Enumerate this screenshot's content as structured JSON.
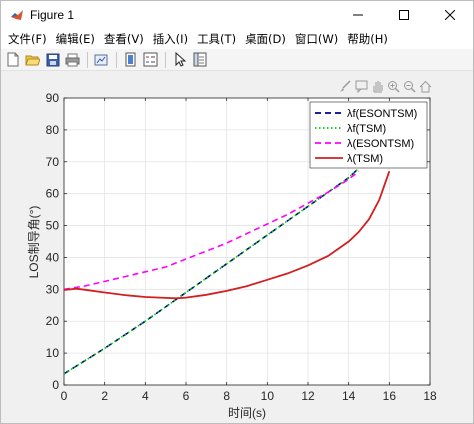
{
  "window": {
    "title": "Figure 1"
  },
  "menu": [
    "文件(F)",
    "编辑(E)",
    "查看(V)",
    "插入(I)",
    "工具(T)",
    "桌面(D)",
    "窗口(W)",
    "帮助(H)"
  ],
  "toolbar": {
    "icons": [
      "new-figure-icon",
      "open-file-icon",
      "save-icon",
      "print-icon",
      "link-plot-icon",
      "insert-colorbar-icon",
      "insert-legend-icon",
      "edit-plot-icon",
      "property-inspector-icon"
    ]
  },
  "axes_toolbar": {
    "icons": [
      "brush-icon",
      "datatip-icon",
      "pan-icon",
      "zoom-in-icon",
      "zoom-out-icon",
      "home-icon"
    ]
  },
  "chart_data": {
    "type": "line",
    "xlabel": "时间(s)",
    "ylabel": "LOS制导角(°)",
    "xlim": [
      0,
      18
    ],
    "ylim": [
      0,
      90
    ],
    "xticks": [
      0,
      2,
      4,
      6,
      8,
      10,
      12,
      14,
      16,
      18
    ],
    "yticks": [
      0,
      10,
      20,
      30,
      40,
      50,
      60,
      70,
      80,
      90
    ],
    "grid": true,
    "legend_position": "top-right",
    "series": [
      {
        "name": "λf(ESONTSM)",
        "color": "#00008b",
        "dash": "dashed",
        "x": [
          0,
          2,
          4,
          6,
          8,
          10,
          12,
          14,
          14.5
        ],
        "y": [
          3.5,
          11.5,
          20,
          29,
          38,
          47,
          56,
          65,
          68
        ]
      },
      {
        "name": "λf(TSM)",
        "color": "#00cc00",
        "dash": "dotted",
        "x": [
          0,
          2,
          4,
          6,
          8,
          10,
          12,
          14,
          14.5
        ],
        "y": [
          3.5,
          11.5,
          20,
          29,
          38,
          47,
          56,
          65,
          68
        ]
      },
      {
        "name": "λ(ESONTSM)",
        "color": "#ff00ff",
        "dash": "dashed",
        "x": [
          0,
          1,
          2,
          3,
          4,
          5,
          6,
          7,
          8,
          9,
          10,
          11,
          12,
          13,
          14,
          14.5
        ],
        "y": [
          30,
          31,
          32.5,
          34,
          35.5,
          37,
          39.5,
          42,
          44.5,
          47.5,
          50.5,
          53.5,
          57,
          60.5,
          64.5,
          67
        ]
      },
      {
        "name": "λ(TSM)",
        "color": "#d21f1f",
        "dash": "solid",
        "x": [
          0,
          0.6,
          1,
          2,
          3,
          4,
          5,
          5.5,
          6,
          7,
          8,
          9,
          10,
          11,
          12,
          13,
          14,
          14.5,
          15,
          15.5,
          16
        ],
        "y": [
          29.8,
          30.2,
          29.9,
          29,
          28.2,
          27.6,
          27.3,
          27.2,
          27.4,
          28.3,
          29.5,
          31,
          33,
          35,
          37.5,
          40.5,
          45,
          48,
          52,
          58,
          67
        ]
      }
    ]
  }
}
